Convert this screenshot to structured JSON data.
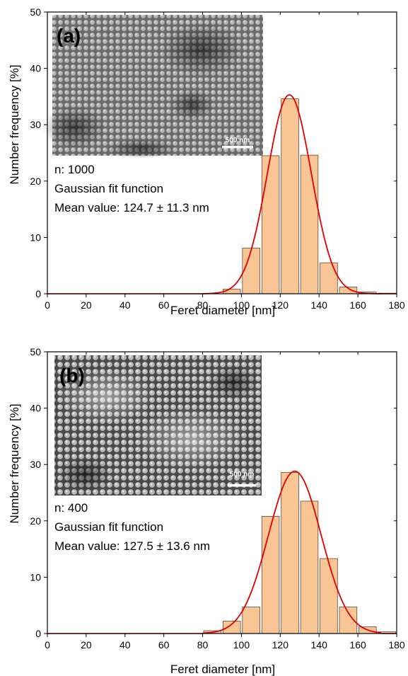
{
  "colors": {
    "bar_fill": "#f9c594",
    "bar_stroke": "#5a4a3a",
    "fit_line": "#e00000",
    "axis": "#000000"
  },
  "chart_data": [
    {
      "type": "bar",
      "panel_label": "(a)",
      "xlabel": "Feret diameter [nm]",
      "ylabel": "Number frequency [%]",
      "xlim": [
        0,
        180
      ],
      "ylim": [
        0,
        50
      ],
      "xticks": [
        0,
        20,
        40,
        60,
        80,
        100,
        120,
        140,
        160,
        180
      ],
      "yticks": [
        0,
        10,
        20,
        30,
        40,
        50
      ],
      "bin_width": 10,
      "bins": [
        90,
        100,
        110,
        120,
        130,
        140,
        150,
        160,
        170
      ],
      "values": [
        0.8,
        8.1,
        24.5,
        34.6,
        24.6,
        5.5,
        1.2,
        0.3,
        0.1
      ],
      "fit": {
        "type": "gaussian",
        "mean": 124.7,
        "sd": 11.3,
        "peak": 35.3
      },
      "annotations": [
        "n: 1000",
        "Gaussian fit function",
        "Mean value: 124.7 ± 11.3 nm"
      ],
      "inset": {
        "type": "sem-image",
        "scale_label": "500 nm"
      }
    },
    {
      "type": "bar",
      "panel_label": "(b)",
      "xlabel": "Feret diameter [nm]",
      "ylabel": "Number frequency [%]",
      "xlim": [
        0,
        180
      ],
      "ylim": [
        0,
        50
      ],
      "xticks": [
        0,
        20,
        40,
        60,
        80,
        100,
        120,
        140,
        160,
        180
      ],
      "yticks": [
        0,
        10,
        20,
        30,
        40,
        50
      ],
      "bin_width": 10,
      "bins": [
        80,
        90,
        100,
        110,
        120,
        130,
        140,
        150,
        160,
        170
      ],
      "values": [
        0.5,
        2.2,
        4.7,
        20.8,
        28.6,
        23.5,
        13.3,
        4.7,
        1.2,
        0.3
      ],
      "fit": {
        "type": "gaussian",
        "mean": 127.5,
        "sd": 13.6,
        "peak": 28.8
      },
      "annotations": [
        "n: 400",
        "Gaussian fit function",
        "Mean value: 127.5 ± 13.6 nm"
      ],
      "inset": {
        "type": "sem-image",
        "scale_label": "500 nm"
      }
    }
  ]
}
